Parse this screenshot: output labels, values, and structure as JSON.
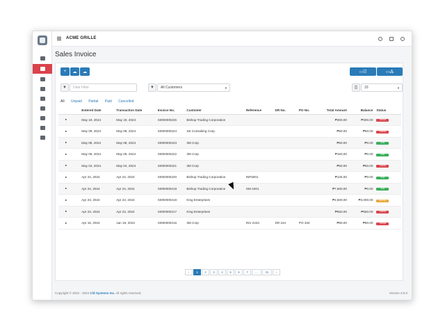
{
  "app": {
    "brand": "ACME GRILLE"
  },
  "page": {
    "title": "Sales Invoice"
  },
  "actions": {
    "add": "+",
    "cloud_up": "☁",
    "cloud_down": "☁",
    "view_list": "▭☷",
    "view_tree": "▭⁂"
  },
  "filters": {
    "date_placeholder": "Date Filter",
    "customer_value": "All Customers",
    "page_size": "10"
  },
  "tabs": [
    "All",
    "Unpaid",
    "Partial",
    "Paid",
    "Cancelled"
  ],
  "table": {
    "headers": [
      "",
      "Entered Date",
      "Transaction Date",
      "Invoice No.",
      "Customer",
      "Reference",
      "DR No.",
      "PO No.",
      "Total Amount",
      "Balance",
      "Status"
    ],
    "rows": [
      {
        "entered": "May 19, 2024",
        "trans": "May 19, 2024",
        "invoice": "SI000000225",
        "customer": "Bishop Trading Corporation",
        "ref": "",
        "dr": "",
        "po": "",
        "total": "₱300.00",
        "balance": "₱300.00",
        "status": "UNPAID"
      },
      {
        "entered": "May 09, 2024",
        "trans": "May 08, 2024",
        "invoice": "SI000000224",
        "customer": "SE Consulting Corp.",
        "ref": "",
        "dr": "",
        "po": "",
        "total": "₱50.00",
        "balance": "₱50.00",
        "status": "UNPAID"
      },
      {
        "entered": "May 08, 2024",
        "trans": "May 08, 2024",
        "invoice": "SI000000223",
        "customer": "3M Corp",
        "ref": "",
        "dr": "",
        "po": "",
        "total": "₱50.00",
        "balance": "₱0.00",
        "status": "PAID"
      },
      {
        "entered": "May 06, 2024",
        "trans": "May 06, 2024",
        "invoice": "SI000000222",
        "customer": "3M Corp",
        "ref": "",
        "dr": "",
        "po": "",
        "total": "₱150.00",
        "balance": "₱0.00",
        "status": "PAID"
      },
      {
        "entered": "May 04, 2024",
        "trans": "May 04, 2024",
        "invoice": "SI000000221",
        "customer": "3M Corp",
        "ref": "",
        "dr": "",
        "po": "",
        "total": "₱50.00",
        "balance": "₱50.00",
        "status": "UNPAID"
      },
      {
        "entered": "Apr 24, 2024",
        "trans": "Apr 24, 2024",
        "invoice": "SI000000220",
        "customer": "Bishop Trading Corporation",
        "ref": "INF5001",
        "dr": "",
        "po": "",
        "total": "₱125.00",
        "balance": "₱0.00",
        "status": "PAID"
      },
      {
        "entered": "Apr 24, 2024",
        "trans": "Apr 24, 2024",
        "invoice": "SI000000219",
        "customer": "Bishop Trading Corporation",
        "ref": "SM-1001",
        "dr": "",
        "po": "",
        "total": "₱7,500.00",
        "balance": "₱0.00",
        "status": "PAID"
      },
      {
        "entered": "Apr 23, 2024",
        "trans": "Apr 23, 2024",
        "invoice": "SI000000218",
        "customer": "King Enterprises",
        "ref": "",
        "dr": "",
        "po": "",
        "total": "₱2,500.00",
        "balance": "₱2,000.00",
        "status": "PARTIAL"
      },
      {
        "entered": "Apr 23, 2024",
        "trans": "Apr 23, 2024",
        "invoice": "SI000000217",
        "customer": "King Enterprises",
        "ref": "",
        "dr": "",
        "po": "",
        "total": "₱550.00",
        "balance": "₱550.00",
        "status": "UNPAID"
      },
      {
        "entered": "Apr 16, 2024",
        "trans": "Jan 19, 2023",
        "invoice": "SI000000216",
        "customer": "3M Corp",
        "ref": "INV 2234",
        "dr": "DR 224",
        "po": "PO 334",
        "total": "₱80.00",
        "balance": "₱80.00",
        "status": "UNPAID"
      }
    ]
  },
  "status_colors": {
    "UNPAID": "#d9434b",
    "PAID": "#3aae5a",
    "PARTIAL": "#e8a93a"
  },
  "pagination": [
    "‹",
    "1",
    "2",
    "3",
    "4",
    "5",
    "6",
    "7",
    "...",
    "31",
    "›"
  ],
  "footer": {
    "prefix": "Copyright © 2022 - 2024",
    "company": "Cld Systems Inc.",
    "suffix": "All rights reserved.",
    "version": "Version 3.5.0"
  }
}
